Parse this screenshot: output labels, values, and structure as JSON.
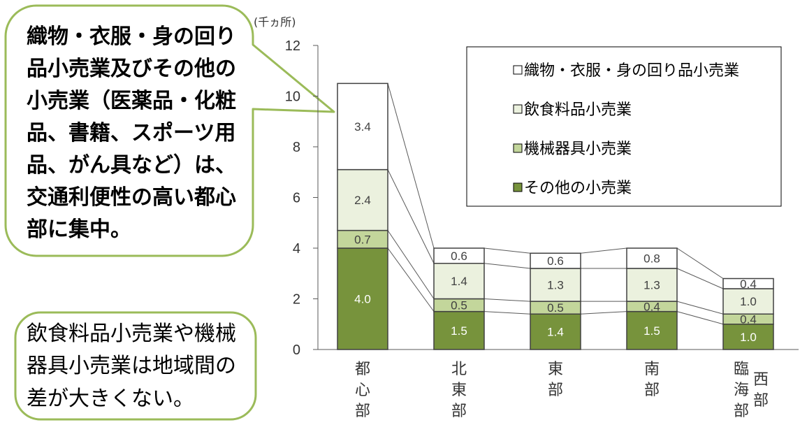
{
  "callouts": {
    "border_color": "#9BBB59",
    "top": {
      "lines": [
        "織物・衣服・身の回り",
        "品小売業及びその他の",
        "小売業（医薬品・化粧",
        "品、書籍、スポーツ用",
        "品、がん具など）は、",
        "交通利便性の高い都心",
        "部に集中。"
      ]
    },
    "bottom": {
      "lines": [
        "飲食料品小売業や機械",
        "器具小売業は地域間の",
        "差が大きくない。"
      ]
    }
  },
  "chart_data": {
    "type": "bar",
    "stacked": true,
    "title": "",
    "xlabel": "",
    "ylabel": "(千ヵ所)",
    "ylim": [
      0,
      12
    ],
    "yticks": [
      0,
      2,
      4,
      6,
      8,
      10,
      12
    ],
    "categories": [
      [
        "都心部"
      ],
      [
        "北東部"
      ],
      [
        "東部"
      ],
      [
        "南部"
      ],
      [
        "臨海部",
        "西部"
      ]
    ],
    "series": [
      {
        "name": "その他の小売業",
        "values": [
          4.0,
          1.5,
          1.4,
          1.5,
          1.0
        ],
        "color": "#77933C",
        "label_color": "#FFFFFF"
      },
      {
        "name": "機械器具小売業",
        "values": [
          0.7,
          0.5,
          0.5,
          0.4,
          0.4
        ],
        "color": "#C3D69B",
        "label_color": "#404040"
      },
      {
        "name": "飲食料品小売業",
        "values": [
          2.4,
          1.4,
          1.3,
          1.3,
          1.0
        ],
        "color": "#EBF1DE",
        "label_color": "#404040"
      },
      {
        "name": "織物・衣服・身の回り品小売業",
        "values": [
          3.4,
          0.6,
          0.6,
          0.8,
          0.4
        ],
        "color": "#FFFFFF",
        "label_color": "#404040"
      }
    ],
    "legend": "top-right",
    "grid": false,
    "data_labels": true,
    "series_lines": true
  }
}
